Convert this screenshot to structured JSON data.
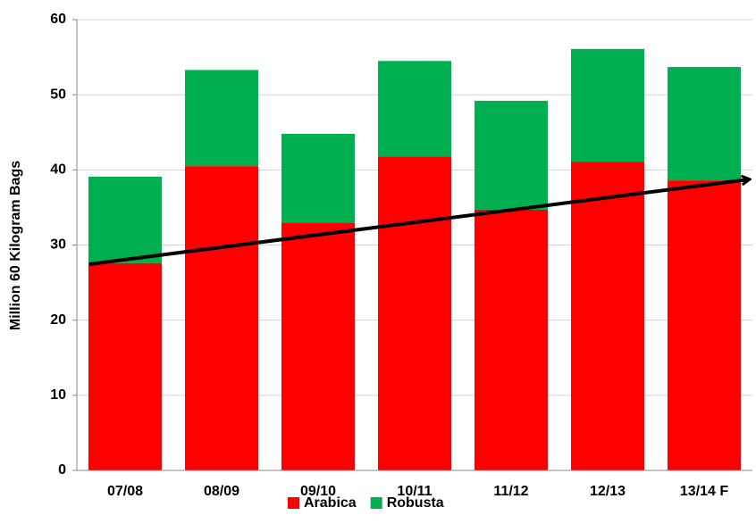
{
  "chart_data": {
    "type": "stacked_bar",
    "y_label": "Million 60 Kilogram Bags",
    "categories": [
      "07/08",
      "08/09",
      "09/10",
      "10/11",
      "11/12",
      "12/13",
      "13/14 F"
    ],
    "series": [
      {
        "name": "Arabica",
        "color": "#ff0000",
        "values": [
          27.6,
          40.5,
          33.0,
          41.8,
          34.7,
          41.1,
          38.6
        ]
      },
      {
        "name": "Robusta",
        "color": "#00b050",
        "values": [
          11.5,
          12.8,
          11.8,
          12.7,
          14.5,
          15.0,
          15.1
        ]
      }
    ],
    "ylim": [
      0,
      60
    ],
    "yticks": [
      0,
      10,
      20,
      30,
      40,
      50,
      60
    ],
    "grid": true,
    "legend": "bottom"
  }
}
